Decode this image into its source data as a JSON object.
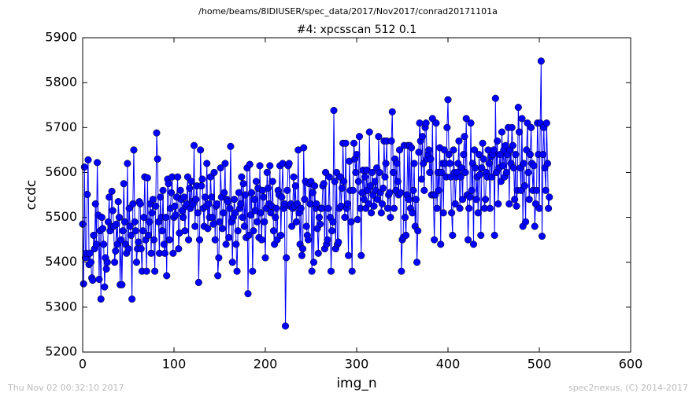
{
  "chart_data": {
    "type": "line",
    "suptitle": "/home/beams/8IDIUSER/spec_data/2017/Nov2017/conrad20171101a",
    "title": "#4: xpcsscan 512 0.1",
    "x_label": "img_n",
    "y_label": "ccdc",
    "footer_left": "Thu Nov 02 00:32:10 2017",
    "footer_right": "spec2nexus, (C) 2014-2017",
    "xlim": [
      0,
      600
    ],
    "xticks": [
      0,
      100,
      200,
      300,
      400,
      500,
      600
    ],
    "ylim": [
      5200,
      5900
    ],
    "yticks": [
      5200,
      5300,
      5400,
      5500,
      5600,
      5700,
      5800,
      5900
    ],
    "x": [
      0,
      1,
      2,
      3,
      4,
      5,
      6,
      7,
      8,
      9,
      10,
      11,
      12,
      13,
      14,
      15,
      16,
      17,
      18,
      19,
      20,
      21,
      22,
      23,
      24,
      25,
      26,
      27,
      28,
      29,
      30,
      31,
      32,
      33,
      34,
      35,
      36,
      37,
      38,
      39,
      40,
      41,
      42,
      43,
      44,
      45,
      46,
      47,
      48,
      49,
      50,
      51,
      52,
      53,
      54,
      55,
      56,
      57,
      58,
      59,
      60,
      61,
      62,
      63,
      64,
      65,
      66,
      67,
      68,
      69,
      70,
      71,
      72,
      73,
      74,
      75,
      76,
      77,
      78,
      79,
      80,
      81,
      82,
      83,
      84,
      85,
      86,
      87,
      88,
      89,
      90,
      91,
      92,
      93,
      94,
      95,
      96,
      97,
      98,
      99,
      100,
      101,
      102,
      103,
      104,
      105,
      106,
      107,
      108,
      109,
      110,
      111,
      112,
      113,
      114,
      115,
      116,
      117,
      118,
      119,
      120,
      121,
      122,
      123,
      124,
      125,
      126,
      127,
      128,
      129,
      130,
      131,
      132,
      133,
      134,
      135,
      136,
      137,
      138,
      139,
      140,
      141,
      142,
      143,
      144,
      145,
      146,
      147,
      148,
      149,
      150,
      151,
      152,
      153,
      154,
      155,
      156,
      157,
      158,
      159,
      160,
      161,
      162,
      163,
      164,
      165,
      166,
      167,
      168,
      169,
      170,
      171,
      172,
      173,
      174,
      175,
      176,
      177,
      178,
      179,
      180,
      181,
      182,
      183,
      184,
      185,
      186,
      187,
      188,
      189,
      190,
      191,
      192,
      193,
      194,
      195,
      196,
      197,
      198,
      199,
      200,
      201,
      202,
      203,
      204,
      205,
      206,
      207,
      208,
      209,
      210,
      211,
      212,
      213,
      214,
      215,
      216,
      217,
      218,
      219,
      220,
      221,
      222,
      223,
      224,
      225,
      226,
      227,
      228,
      229,
      230,
      231,
      232,
      233,
      234,
      235,
      236,
      237,
      238,
      239,
      240,
      241,
      242,
      243,
      244,
      245,
      246,
      247,
      248,
      249,
      250,
      251,
      252,
      253,
      254,
      255,
      256,
      257,
      258,
      259,
      260,
      261,
      262,
      263,
      264,
      265,
      266,
      267,
      268,
      269,
      270,
      271,
      272,
      273,
      274,
      275,
      276,
      277,
      278,
      279,
      280,
      281,
      282,
      283,
      284,
      285,
      286,
      287,
      288,
      289,
      290,
      291,
      292,
      293,
      294,
      295,
      296,
      297,
      298,
      299,
      300,
      301,
      302,
      303,
      304,
      305,
      306,
      307,
      308,
      309,
      310,
      311,
      312,
      313,
      314,
      315,
      316,
      317,
      318,
      319,
      320,
      321,
      322,
      323,
      324,
      325,
      326,
      327,
      328,
      329,
      330,
      331,
      332,
      333,
      334,
      335,
      336,
      337,
      338,
      339,
      340,
      341,
      342,
      343,
      344,
      345,
      346,
      347,
      348,
      349,
      350,
      351,
      352,
      353,
      354,
      355,
      356,
      357,
      358,
      359,
      360,
      361,
      362,
      363,
      364,
      365,
      366,
      367,
      368,
      369,
      370,
      371,
      372,
      373,
      374,
      375,
      376,
      377,
      378,
      379,
      380,
      381,
      382,
      383,
      384,
      385,
      386,
      387,
      388,
      389,
      390,
      391,
      392,
      393,
      394,
      395,
      396,
      397,
      398,
      399,
      400,
      401,
      402,
      403,
      404,
      405,
      406,
      407,
      408,
      409,
      410,
      411,
      412,
      413,
      414,
      415,
      416,
      417,
      418,
      419,
      420,
      421,
      422,
      423,
      424,
      425,
      426,
      427,
      428,
      429,
      430,
      431,
      432,
      433,
      434,
      435,
      436,
      437,
      438,
      439,
      440,
      441,
      442,
      443,
      444,
      445,
      446,
      447,
      448,
      449,
      450,
      451,
      452,
      453,
      454,
      455,
      456,
      457,
      458,
      459,
      460,
      461,
      462,
      463,
      464,
      465,
      466,
      467,
      468,
      469,
      470,
      471,
      472,
      473,
      474,
      475,
      476,
      477,
      478,
      479,
      480,
      481,
      482,
      483,
      484,
      485,
      486,
      487,
      488,
      489,
      490,
      491,
      492,
      493,
      494,
      495,
      496,
      497,
      498,
      499,
      500,
      501,
      502,
      503,
      504,
      505,
      506,
      507,
      508,
      509,
      510,
      511
    ],
    "series": [
      {
        "color": "#0000ff",
        "values": [
          5485,
          5352,
          5612,
          5410,
          5420,
          5551,
          5628,
          5395,
          5420,
          5400,
          5365,
          5360,
          5460,
          5430,
          5530,
          5440,
          5622,
          5505,
          5362,
          5470,
          5318,
          5500,
          5475,
          5440,
          5345,
          5410,
          5385,
          5400,
          5490,
          5545,
          5470,
          5480,
          5558,
          5515,
          5480,
          5400,
          5425,
          5485,
          5440,
          5535,
          5500,
          5350,
          5450,
          5350,
          5470,
          5575,
          5490,
          5440,
          5420,
          5620,
          5430,
          5520,
          5480,
          5460,
          5318,
          5530,
          5650,
          5490,
          5470,
          5400,
          5430,
          5445,
          5535,
          5530,
          5430,
          5380,
          5470,
          5500,
          5590,
          5450,
          5380,
          5588,
          5460,
          5490,
          5530,
          5420,
          5510,
          5540,
          5450,
          5380,
          5525,
          5688,
          5630,
          5490,
          5420,
          5545,
          5500,
          5470,
          5560,
          5440,
          5420,
          5500,
          5370,
          5585,
          5575,
          5450,
          5520,
          5555,
          5590,
          5420,
          5500,
          5525,
          5505,
          5545,
          5590,
          5430,
          5465,
          5560,
          5540,
          5515,
          5500,
          5545,
          5470,
          5525,
          5530,
          5590,
          5450,
          5565,
          5520,
          5580,
          5535,
          5530,
          5660,
          5480,
          5540,
          5570,
          5510,
          5355,
          5450,
          5650,
          5570,
          5585,
          5520,
          5480,
          5545,
          5525,
          5620,
          5475,
          5530,
          5500,
          5590,
          5545,
          5500,
          5485,
          5600,
          5450,
          5525,
          5530,
          5370,
          5410,
          5490,
          5610,
          5545,
          5475,
          5510,
          5555,
          5620,
          5440,
          5540,
          5535,
          5455,
          5520,
          5658,
          5490,
          5400,
          5500,
          5540,
          5510,
          5440,
          5380,
          5470,
          5555,
          5520,
          5530,
          5590,
          5500,
          5575,
          5480,
          5550,
          5455,
          5610,
          5330,
          5460,
          5618,
          5505,
          5555,
          5380,
          5470,
          5540,
          5515,
          5580,
          5490,
          5565,
          5455,
          5615,
          5510,
          5450,
          5560,
          5545,
          5490,
          5410,
          5520,
          5600,
          5565,
          5530,
          5615,
          5510,
          5525,
          5580,
          5470,
          5440,
          5500,
          5520,
          5450,
          5560,
          5550,
          5615,
          5460,
          5545,
          5620,
          5520,
          5530,
          5258,
          5410,
          5560,
          5615,
          5620,
          5525,
          5530,
          5480,
          5520,
          5590,
          5525,
          5570,
          5490,
          5530,
          5650,
          5510,
          5440,
          5520,
          5415,
          5430,
          5655,
          5540,
          5580,
          5480,
          5460,
          5450,
          5575,
          5530,
          5580,
          5380,
          5555,
          5400,
          5570,
          5520,
          5530,
          5475,
          5420,
          5500,
          5485,
          5520,
          5520,
          5570,
          5575,
          5430,
          5600,
          5440,
          5450,
          5520,
          5590,
          5500,
          5380,
          5470,
          5490,
          5738,
          5580,
          5430,
          5600,
          5440,
          5445,
          5520,
          5590,
          5525,
          5565,
          5665,
          5580,
          5500,
          5665,
          5520,
          5530,
          5415,
          5625,
          5560,
          5490,
          5380,
          5560,
          5665,
          5630,
          5600,
          5640,
          5495,
          5580,
          5680,
          5520,
          5415,
          5555,
          5605,
          5540,
          5590,
          5520,
          5605,
          5560,
          5530,
          5690,
          5570,
          5510,
          5600,
          5550,
          5525,
          5580,
          5560,
          5610,
          5540,
          5680,
          5600,
          5555,
          5510,
          5530,
          5565,
          5670,
          5590,
          5620,
          5670,
          5520,
          5550,
          5555,
          5500,
          5670,
          5735,
          5600,
          5520,
          5630,
          5560,
          5620,
          5580,
          5550,
          5650,
          5555,
          5380,
          5450,
          5455,
          5660,
          5500,
          5460,
          5550,
          5660,
          5540,
          5660,
          5520,
          5655,
          5510,
          5560,
          5620,
          5480,
          5540,
          5400,
          5470,
          5645,
          5710,
          5670,
          5585,
          5680,
          5620,
          5560,
          5700,
          5710,
          5630,
          5640,
          5650,
          5600,
          5630,
          5550,
          5720,
          5550,
          5450,
          5550,
          5710,
          5520,
          5600,
          5560,
          5655,
          5440,
          5600,
          5620,
          5510,
          5650,
          5620,
          5590,
          5700,
          5762,
          5640,
          5620,
          5590,
          5510,
          5460,
          5650,
          5600,
          5530,
          5590,
          5600,
          5620,
          5670,
          5520,
          5590,
          5610,
          5540,
          5640,
          5680,
          5600,
          5720,
          5550,
          5450,
          5520,
          5545,
          5710,
          5560,
          5620,
          5440,
          5650,
          5610,
          5540,
          5590,
          5510,
          5640,
          5595,
          5460,
          5610,
          5665,
          5630,
          5520,
          5540,
          5600,
          5590,
          5650,
          5620,
          5520,
          5635,
          5590,
          5640,
          5650,
          5460,
          5765,
          5600,
          5670,
          5530,
          5610,
          5640,
          5580,
          5690,
          5615,
          5650,
          5590,
          5660,
          5600,
          5640,
          5700,
          5530,
          5650,
          5620,
          5700,
          5660,
          5610,
          5540,
          5640,
          5525,
          5560,
          5745,
          5690,
          5610,
          5560,
          5720,
          5480,
          5620,
          5570,
          5490,
          5650,
          5710,
          5600,
          5540,
          5640,
          5700,
          5620,
          5560,
          5615,
          5480,
          5530,
          5560,
          5710,
          5640,
          5520,
          5710,
          5848,
          5458,
          5640,
          5700,
          5610,
          5560,
          5710,
          5620,
          5520,
          5545
        ]
      }
    ]
  }
}
